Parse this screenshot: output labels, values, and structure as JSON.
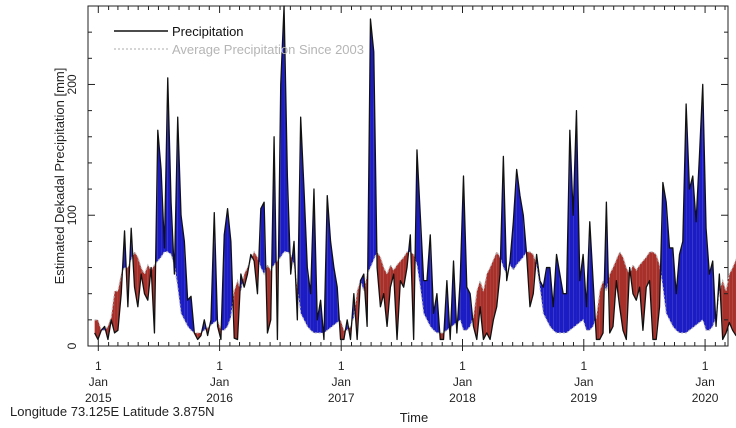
{
  "chart_data": {
    "type": "line",
    "xlabel": "Time",
    "ylabel": "Estimated Dekadal Precipitation [mm]",
    "ylim": [
      0,
      260
    ],
    "xlim": [
      "2014-12-01",
      "2020-03-10"
    ],
    "yticks": [
      "0",
      "100",
      "200"
    ],
    "xticks": [
      {
        "date": "2015-01-01",
        "month": "Jan",
        "year": "2015"
      },
      {
        "date": "2016-01-01",
        "month": "Jan",
        "year": "2016"
      },
      {
        "date": "2017-01-01",
        "month": "Jan",
        "year": "2017"
      },
      {
        "date": "2018-01-01",
        "month": "Jan",
        "year": "2018"
      },
      {
        "date": "2019-01-01",
        "month": "Jan",
        "year": "2019"
      },
      {
        "date": "2020-01-01",
        "month": "Jan",
        "year": "2020"
      }
    ],
    "legend_position": "top-left",
    "colors": {
      "precipitation": "#111111",
      "average": "#bdbdbd",
      "above_average_fill": "#1c1cc4",
      "below_average_fill": "#a8302a"
    },
    "average_climatology": [
      12,
      12,
      15,
      22,
      42,
      50,
      42,
      55,
      60,
      66,
      72,
      68,
      60,
      55,
      62,
      58,
      62,
      65,
      68,
      72,
      72,
      70,
      62,
      45,
      25,
      20,
      15,
      12,
      10,
      10,
      10,
      12,
      14,
      16,
      18,
      20
    ],
    "series": [
      {
        "name": "Precipitation",
        "start_date": "2014-12-21",
        "step_days": 10,
        "values": [
          10,
          5,
          12,
          15,
          5,
          20,
          10,
          12,
          40,
          88,
          30,
          90,
          45,
          30,
          55,
          40,
          35,
          60,
          10,
          165,
          135,
          75,
          205,
          110,
          55,
          175,
          100,
          80,
          35,
          38,
          10,
          5,
          8,
          20,
          8,
          20,
          102,
          15,
          5,
          85,
          105,
          80,
          6,
          5,
          55,
          45,
          55,
          70,
          65,
          40,
          105,
          110,
          10,
          20,
          160,
          5,
          200,
          260,
          130,
          55,
          80,
          20,
          175,
          120,
          60,
          40,
          120,
          20,
          35,
          5,
          115,
          80,
          60,
          45,
          5,
          5,
          20,
          5,
          40,
          5,
          50,
          55,
          15,
          250,
          225,
          60,
          30,
          40,
          15,
          45,
          55,
          5,
          50,
          45,
          60,
          85,
          5,
          150,
          100,
          50,
          50,
          85,
          25,
          40,
          5,
          5,
          50,
          5,
          65,
          10,
          50,
          130,
          45,
          40,
          15,
          5,
          30,
          5,
          10,
          5,
          20,
          30,
          55,
          145,
          50,
          65,
          95,
          135,
          115,
          100,
          70,
          30,
          40,
          70,
          50,
          45,
          60,
          60,
          30,
          70,
          55,
          40,
          40,
          165,
          100,
          180,
          50,
          70,
          30,
          95,
          50,
          5,
          5,
          10,
          110,
          10,
          15,
          50,
          30,
          12,
          5,
          60,
          40,
          35,
          45,
          12,
          45,
          50,
          5,
          5,
          30,
          125,
          110,
          75,
          75,
          40,
          70,
          80,
          185,
          120,
          130,
          95,
          145,
          200,
          90,
          55,
          65,
          15,
          55,
          5,
          10,
          18,
          12,
          8,
          14
        ]
      },
      {
        "name": "Average Precipitation Since 2003",
        "values_ref": "average_climatology"
      }
    ]
  },
  "footer": {
    "location": "Longitude 73.125E Latitude 3.875N"
  }
}
